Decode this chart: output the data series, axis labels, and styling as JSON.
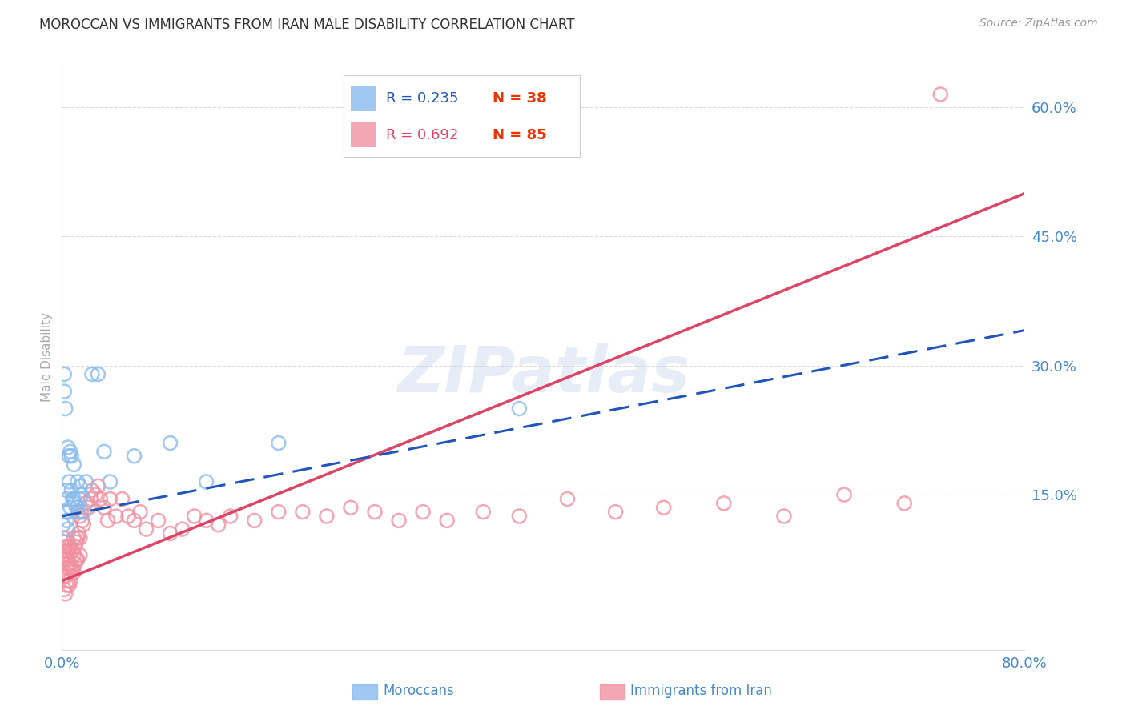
{
  "title": "MOROCCAN VS IMMIGRANTS FROM IRAN MALE DISABILITY CORRELATION CHART",
  "source": "Source: ZipAtlas.com",
  "ylabel": "Male Disability",
  "watermark": "ZIPatlas",
  "x_min": 0.0,
  "x_max": 0.8,
  "y_min": -0.03,
  "y_max": 0.65,
  "x_ticks": [
    0.0,
    0.1,
    0.2,
    0.3,
    0.4,
    0.5,
    0.6,
    0.7,
    0.8
  ],
  "x_tick_labels": [
    "0.0%",
    "",
    "",
    "",
    "",
    "",
    "",
    "",
    "80.0%"
  ],
  "y_ticks": [
    0.15,
    0.3,
    0.45,
    0.6
  ],
  "y_tick_labels": [
    "15.0%",
    "30.0%",
    "45.0%",
    "60.0%"
  ],
  "grid_color": "#cccccc",
  "background_color": "#ffffff",
  "legend_r1": "R = 0.235",
  "legend_n1": "N = 38",
  "legend_r2": "R = 0.692",
  "legend_n2": "N = 85",
  "moroccan_color": "#88bbee",
  "iran_color": "#f090a0",
  "moroccan_line_color": "#2255bb",
  "iran_line_color": "#dd4466",
  "tick_color": "#4488cc",
  "title_color": "#333333",
  "moroccan_label": "Moroccans",
  "iran_label": "Immigrants from Iran",
  "moroccan_x": [
    0.001,
    0.002,
    0.002,
    0.003,
    0.003,
    0.004,
    0.004,
    0.004,
    0.005,
    0.005,
    0.005,
    0.006,
    0.006,
    0.007,
    0.007,
    0.008,
    0.008,
    0.009,
    0.01,
    0.01,
    0.011,
    0.012,
    0.013,
    0.014,
    0.015,
    0.015,
    0.016,
    0.018,
    0.02,
    0.025,
    0.03,
    0.035,
    0.04,
    0.06,
    0.09,
    0.12,
    0.18,
    0.38
  ],
  "moroccan_y": [
    0.115,
    0.29,
    0.27,
    0.25,
    0.13,
    0.145,
    0.155,
    0.12,
    0.205,
    0.13,
    0.11,
    0.195,
    0.165,
    0.2,
    0.135,
    0.195,
    0.155,
    0.145,
    0.185,
    0.145,
    0.14,
    0.135,
    0.165,
    0.13,
    0.16,
    0.145,
    0.15,
    0.13,
    0.165,
    0.29,
    0.29,
    0.2,
    0.165,
    0.195,
    0.21,
    0.165,
    0.21,
    0.25
  ],
  "iran_x": [
    0.001,
    0.001,
    0.001,
    0.002,
    0.002,
    0.002,
    0.002,
    0.003,
    0.003,
    0.003,
    0.003,
    0.004,
    0.004,
    0.004,
    0.005,
    0.005,
    0.005,
    0.006,
    0.006,
    0.006,
    0.007,
    0.007,
    0.007,
    0.008,
    0.008,
    0.009,
    0.009,
    0.01,
    0.01,
    0.01,
    0.011,
    0.011,
    0.012,
    0.012,
    0.013,
    0.013,
    0.014,
    0.015,
    0.015,
    0.015,
    0.016,
    0.017,
    0.018,
    0.02,
    0.022,
    0.024,
    0.025,
    0.028,
    0.03,
    0.032,
    0.035,
    0.038,
    0.04,
    0.045,
    0.05,
    0.055,
    0.06,
    0.065,
    0.07,
    0.08,
    0.09,
    0.1,
    0.11,
    0.12,
    0.13,
    0.14,
    0.16,
    0.18,
    0.2,
    0.22,
    0.24,
    0.26,
    0.28,
    0.3,
    0.32,
    0.35,
    0.38,
    0.42,
    0.46,
    0.5,
    0.55,
    0.6,
    0.65,
    0.7,
    0.73
  ],
  "iran_y": [
    0.1,
    0.08,
    0.055,
    0.095,
    0.085,
    0.06,
    0.04,
    0.09,
    0.075,
    0.055,
    0.035,
    0.085,
    0.065,
    0.045,
    0.09,
    0.07,
    0.05,
    0.085,
    0.065,
    0.045,
    0.09,
    0.07,
    0.05,
    0.085,
    0.065,
    0.085,
    0.065,
    0.1,
    0.08,
    0.06,
    0.09,
    0.07,
    0.095,
    0.075,
    0.1,
    0.075,
    0.105,
    0.125,
    0.1,
    0.08,
    0.13,
    0.12,
    0.115,
    0.14,
    0.135,
    0.145,
    0.155,
    0.15,
    0.16,
    0.145,
    0.135,
    0.12,
    0.145,
    0.125,
    0.145,
    0.125,
    0.12,
    0.13,
    0.11,
    0.12,
    0.105,
    0.11,
    0.125,
    0.12,
    0.115,
    0.125,
    0.12,
    0.13,
    0.13,
    0.125,
    0.135,
    0.13,
    0.12,
    0.13,
    0.12,
    0.13,
    0.125,
    0.145,
    0.13,
    0.135,
    0.14,
    0.125,
    0.15,
    0.14,
    0.615
  ]
}
